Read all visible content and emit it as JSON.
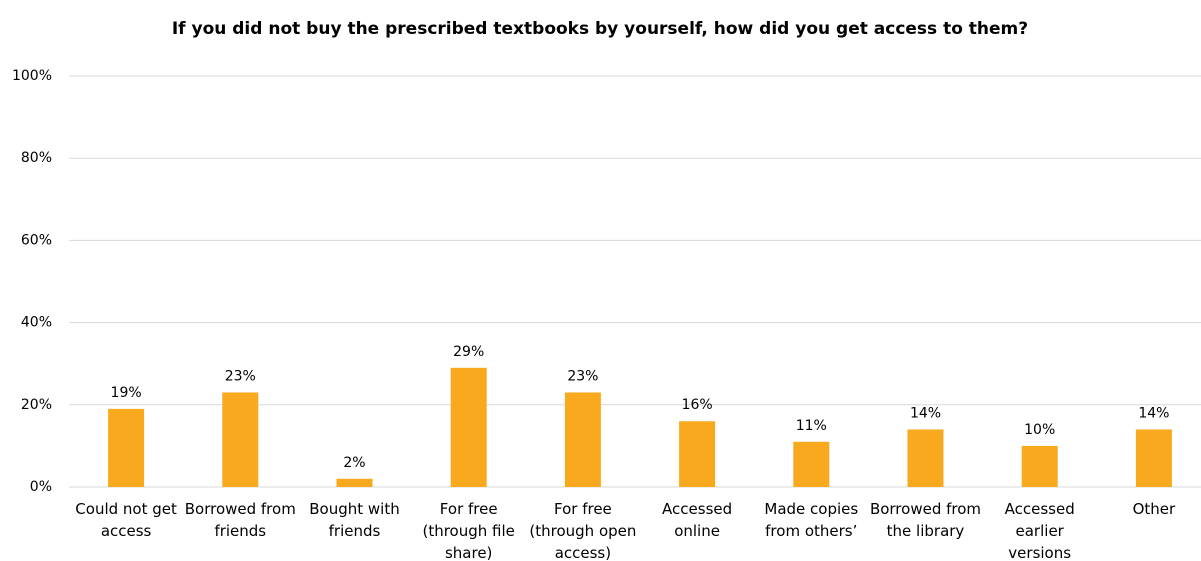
{
  "chart_data": {
    "type": "bar",
    "title": "If you did not buy the prescribed textbooks by yourself, how did you get access to them?",
    "categories": [
      "Could not get access",
      "Borrowed from friends",
      "Bought with friends",
      "For free (through file share)",
      "For free (through open access)",
      "Accessed online",
      "Made copies from others’",
      "Borrowed from the library",
      "Accessed earlier versions",
      "Other"
    ],
    "values": [
      19,
      23,
      2,
      29,
      23,
      16,
      11,
      14,
      10,
      14
    ],
    "value_labels": [
      "19%",
      "23%",
      "2%",
      "29%",
      "23%",
      "16%",
      "11%",
      "14%",
      "10%",
      "14%"
    ],
    "color": "#f9a91e",
    "ylim": [
      0,
      100
    ],
    "yticks": [
      {
        "value": 0,
        "label": "0%"
      },
      {
        "value": 20,
        "label": "20%"
      },
      {
        "value": 40,
        "label": "40%"
      },
      {
        "value": 60,
        "label": "60%"
      },
      {
        "value": 80,
        "label": "80%"
      },
      {
        "value": 100,
        "label": "100%"
      }
    ],
    "grid": true
  }
}
